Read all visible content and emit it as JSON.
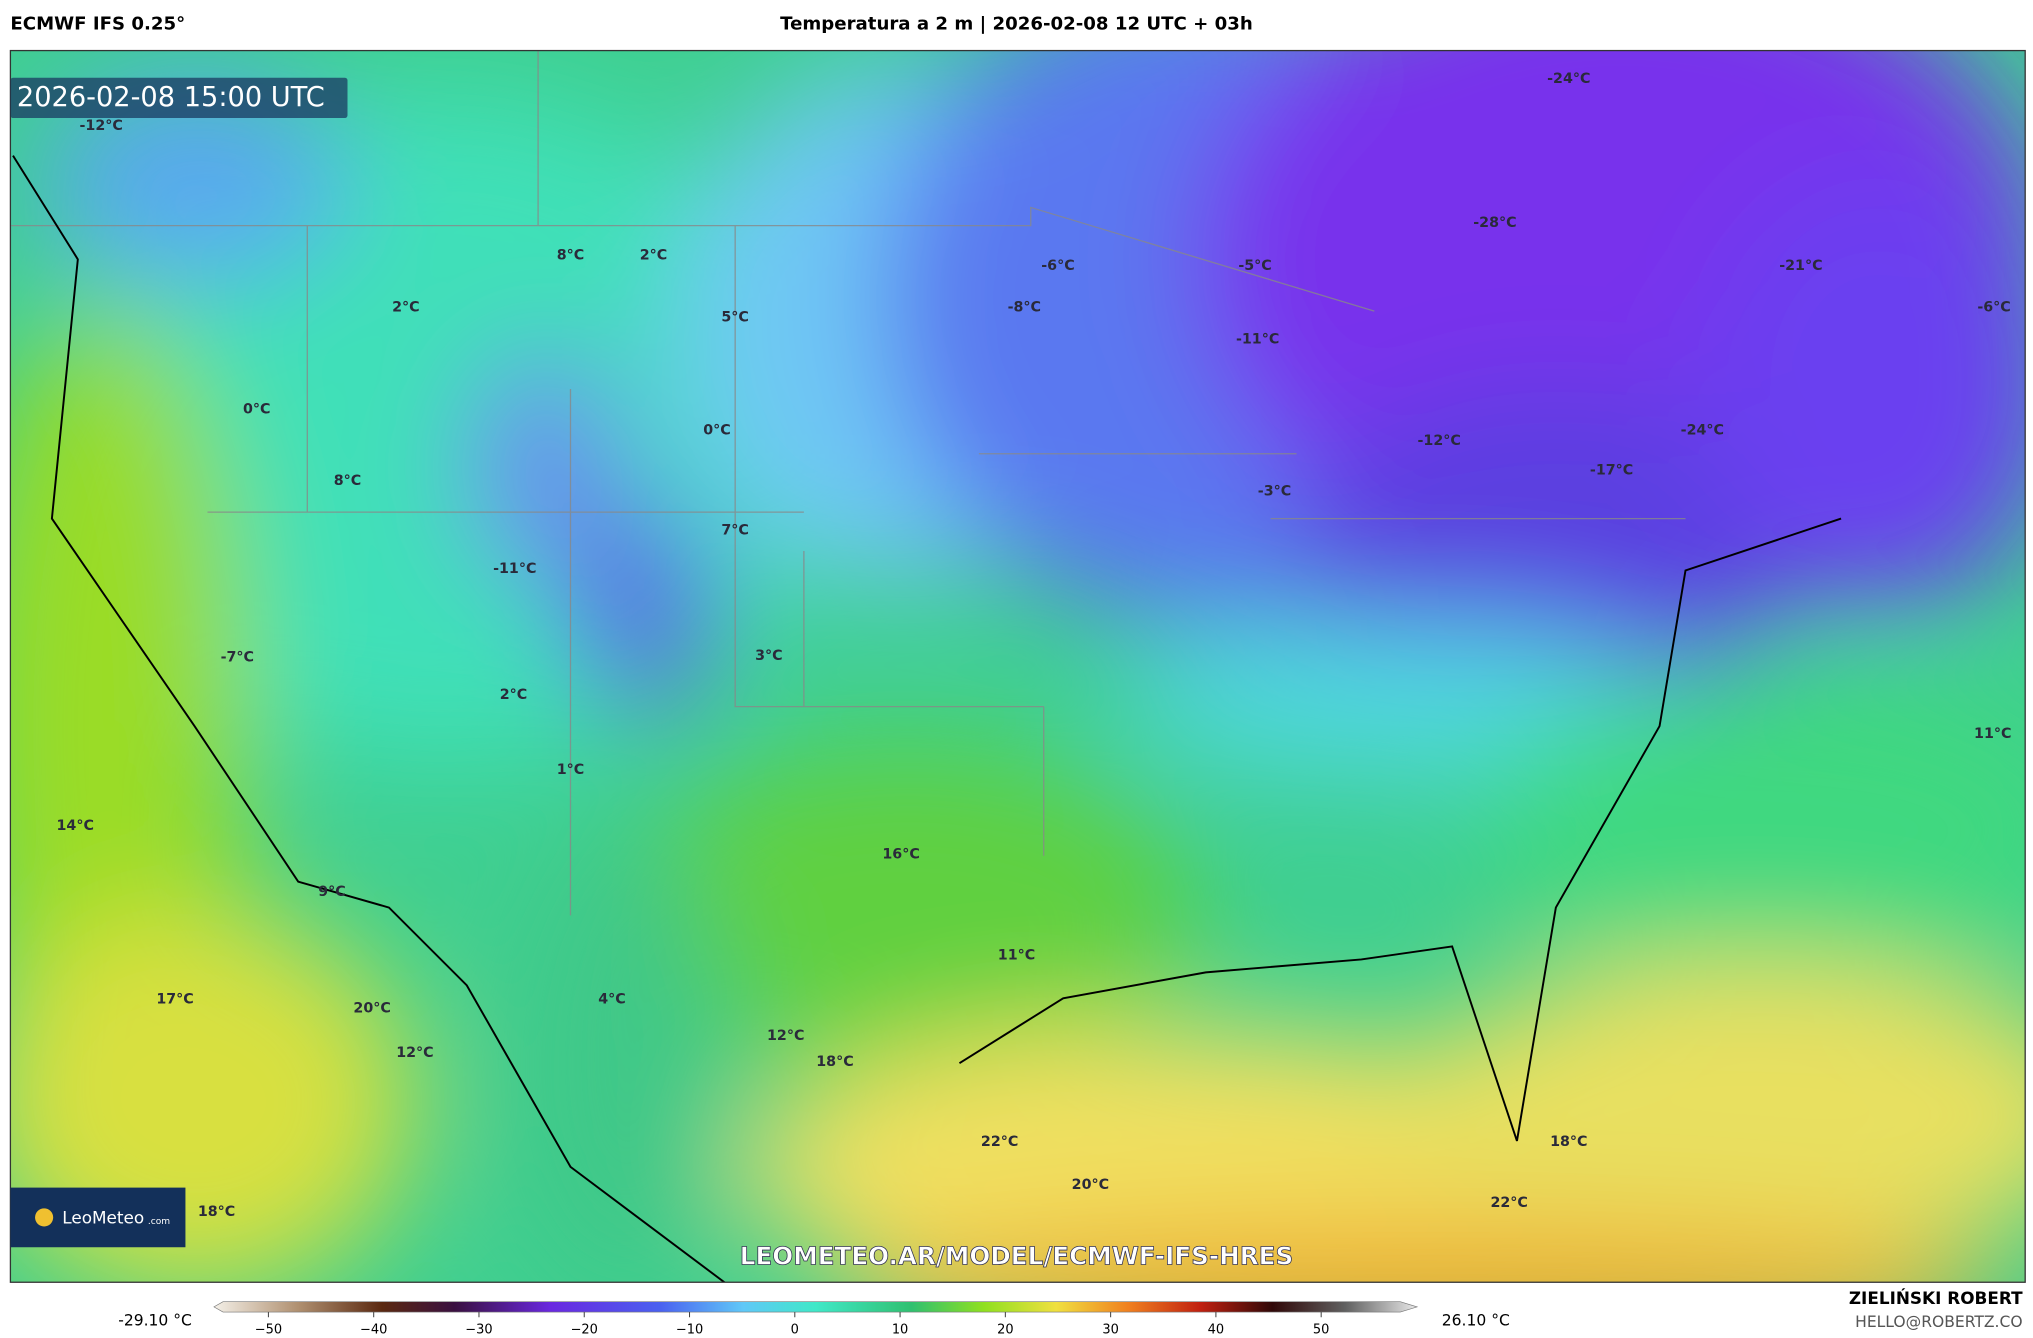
{
  "header": {
    "model": "ECMWF IFS 0.25°",
    "title": "Temperatura a 2 m | 2026-02-08 12 UTC + 03h"
  },
  "map": {
    "timestamp": "2026-02-08 15:00 UTC",
    "labels": [
      "-12°C",
      "-24°C",
      "-28°C",
      "-21°C",
      "-6°C",
      "-6°C",
      "-5°C",
      "-8°C",
      "-11°C",
      "8°C",
      "2°C",
      "2°C",
      "5°C",
      "0°C",
      "0°C",
      "8°C",
      "-12°C",
      "-24°C",
      "-17°C",
      "-3°C",
      "7°C",
      "-11°C",
      "3°C",
      "-7°C",
      "2°C",
      "11°C",
      "1°C",
      "14°C",
      "16°C",
      "9°C",
      "11°C",
      "17°C",
      "20°C",
      "4°C",
      "12°C",
      "12°C",
      "18°C",
      "22°C",
      "18°C",
      "20°C",
      "18°C",
      "22°C"
    ],
    "logo": {
      "name": "LeoMeteo",
      "suffix": ".com"
    },
    "watermark": "LEOMETEO.AR/MODEL/ECMWF-IFS-HRES"
  },
  "colorbar": {
    "min_label": "-29.10 °C",
    "max_label": "26.10 °C",
    "ticks": [
      {
        "value": -50,
        "label": "−50"
      },
      {
        "value": -40,
        "label": "−40"
      },
      {
        "value": -30,
        "label": "−30"
      },
      {
        "value": -20,
        "label": "−20"
      },
      {
        "value": -10,
        "label": "−10"
      },
      0,
      10,
      20,
      30,
      40,
      50
    ]
  },
  "footer": {
    "author": "ZIELIŃSKI ROBERT",
    "contact": "HELLO@ROBERTZ.CO"
  }
}
